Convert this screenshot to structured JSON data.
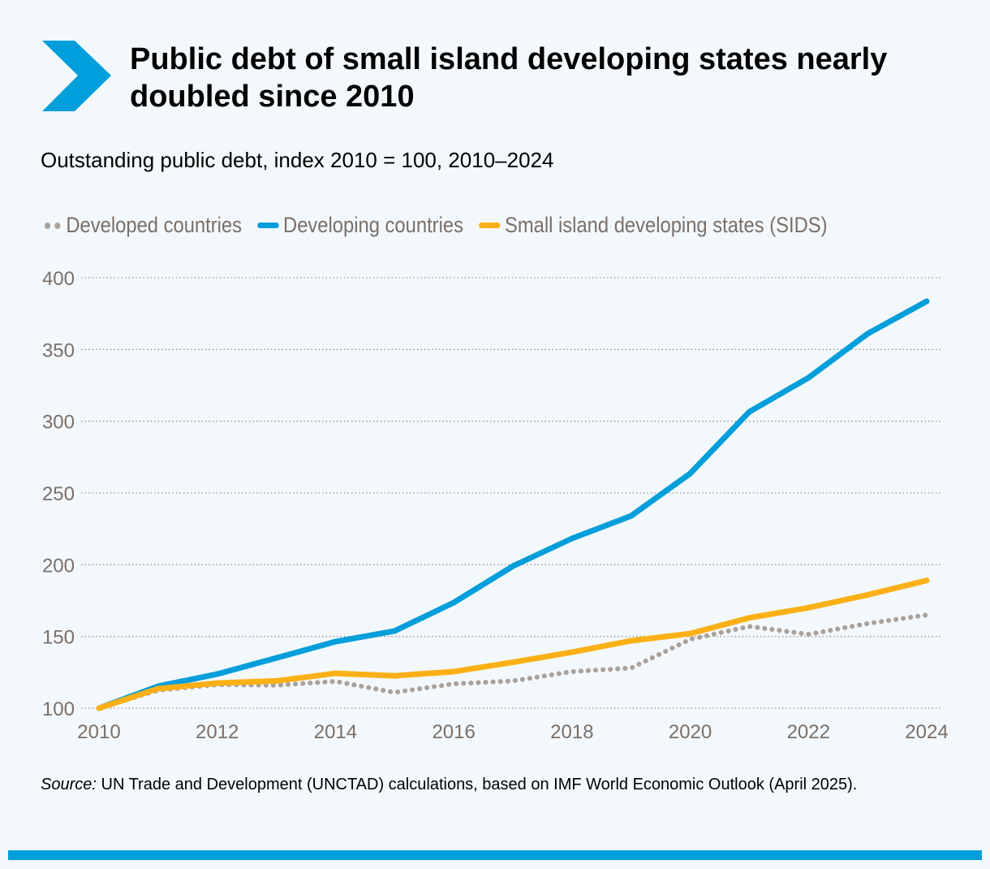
{
  "title": "Public debt of small island developing states nearly doubled since 2010",
  "subtitle": "Outstanding public debt, index 2010 = 100, 2010–2024",
  "source_label": "Source:",
  "source_text": " UN Trade and Development (UNCTAD) calculations, based on IMF World Economic Outlook (April 2025).",
  "colors": {
    "accent": "#009edb",
    "developed": "#a9a19c",
    "developing": "#009edb",
    "sids": "#fbb016"
  },
  "chart_data": {
    "type": "line",
    "title": "Outstanding public debt, index 2010 = 100, 2010–2024",
    "x": [
      2010,
      2011,
      2012,
      2013,
      2014,
      2015,
      2016,
      2017,
      2018,
      2019,
      2020,
      2021,
      2022,
      2023,
      2024
    ],
    "xticks": [
      "2010",
      "2012",
      "2014",
      "2016",
      "2018",
      "2020",
      "2022",
      "2024"
    ],
    "yticks": [
      "100",
      "150",
      "200",
      "250",
      "300",
      "350",
      "400"
    ],
    "ylim": [
      100,
      400
    ],
    "grid": "horizontal dotted",
    "legend": "top",
    "series": [
      {
        "name": "Developed countries",
        "style": "dotted",
        "color": "#a9a19c",
        "values": [
          100,
          112.5,
          116.4,
          116,
          118.7,
          111,
          117,
          119,
          125.5,
          128,
          148,
          157,
          151.5,
          159,
          165
        ]
      },
      {
        "name": "Developing countries",
        "style": "solid",
        "color": "#009edb",
        "values": [
          100,
          115.3,
          123.8,
          135,
          146.4,
          153.8,
          173.6,
          199,
          218.3,
          234,
          263.6,
          306.6,
          330.3,
          361,
          383.6
        ]
      },
      {
        "name": "Small island developing states (SIDS)",
        "style": "solid",
        "color": "#fbb016",
        "values": [
          100,
          113.6,
          117.5,
          119,
          124.3,
          122.6,
          125.5,
          132,
          139,
          147,
          152,
          163,
          170,
          179,
          189
        ]
      }
    ]
  }
}
